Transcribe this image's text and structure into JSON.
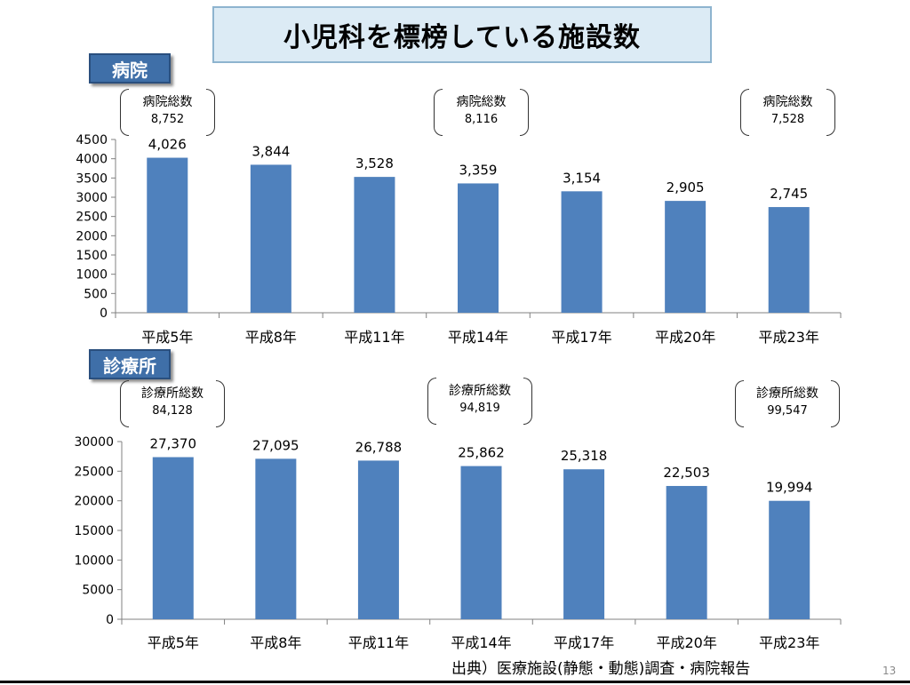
{
  "title": "小児科を標榜している施設数",
  "sections": {
    "hospital_label": "病院",
    "clinic_label": "診療所"
  },
  "hospital_totals": [
    {
      "label": "病院総数",
      "value": "8,752"
    },
    {
      "label": "病院総数",
      "value": "8,116"
    },
    {
      "label": "病院総数",
      "value": "7,528"
    }
  ],
  "clinic_totals": [
    {
      "label": "診療所総数",
      "value": "84,128"
    },
    {
      "label": "診療所総数",
      "value": "94,819"
    },
    {
      "label": "診療所総数",
      "value": "99,547"
    }
  ],
  "chart_data": [
    {
      "type": "bar",
      "title": "病院",
      "categories": [
        "平成5年",
        "平成8年",
        "平成11年",
        "平成14年",
        "平成17年",
        "平成20年",
        "平成23年"
      ],
      "values": [
        4026,
        3844,
        3528,
        3359,
        3154,
        2905,
        2745
      ],
      "data_labels": [
        "4,026",
        "3,844",
        "3,528",
        "3,359",
        "3,154",
        "2,905",
        "2,745"
      ],
      "ylim": [
        0,
        4500
      ],
      "yticks": [
        0,
        500,
        1000,
        1500,
        2000,
        2500,
        3000,
        3500,
        4000,
        4500
      ],
      "color": "#4f81bd",
      "xlabel": "",
      "ylabel": ""
    },
    {
      "type": "bar",
      "title": "診療所",
      "categories": [
        "平成5年",
        "平成8年",
        "平成11年",
        "平成14年",
        "平成17年",
        "平成20年",
        "平成23年"
      ],
      "values": [
        27370,
        27095,
        26788,
        25862,
        25318,
        22503,
        19994
      ],
      "data_labels": [
        "27,370",
        "27,095",
        "26,788",
        "25,862",
        "25,318",
        "22,503",
        "19,994"
      ],
      "ylim": [
        0,
        30000
      ],
      "yticks": [
        0,
        5000,
        10000,
        15000,
        20000,
        25000,
        30000
      ],
      "color": "#4f81bd",
      "xlabel": "",
      "ylabel": ""
    }
  ],
  "footer": {
    "source": "出典）医療施設(静態・動態)調査・病院報告",
    "page_number": "13"
  }
}
